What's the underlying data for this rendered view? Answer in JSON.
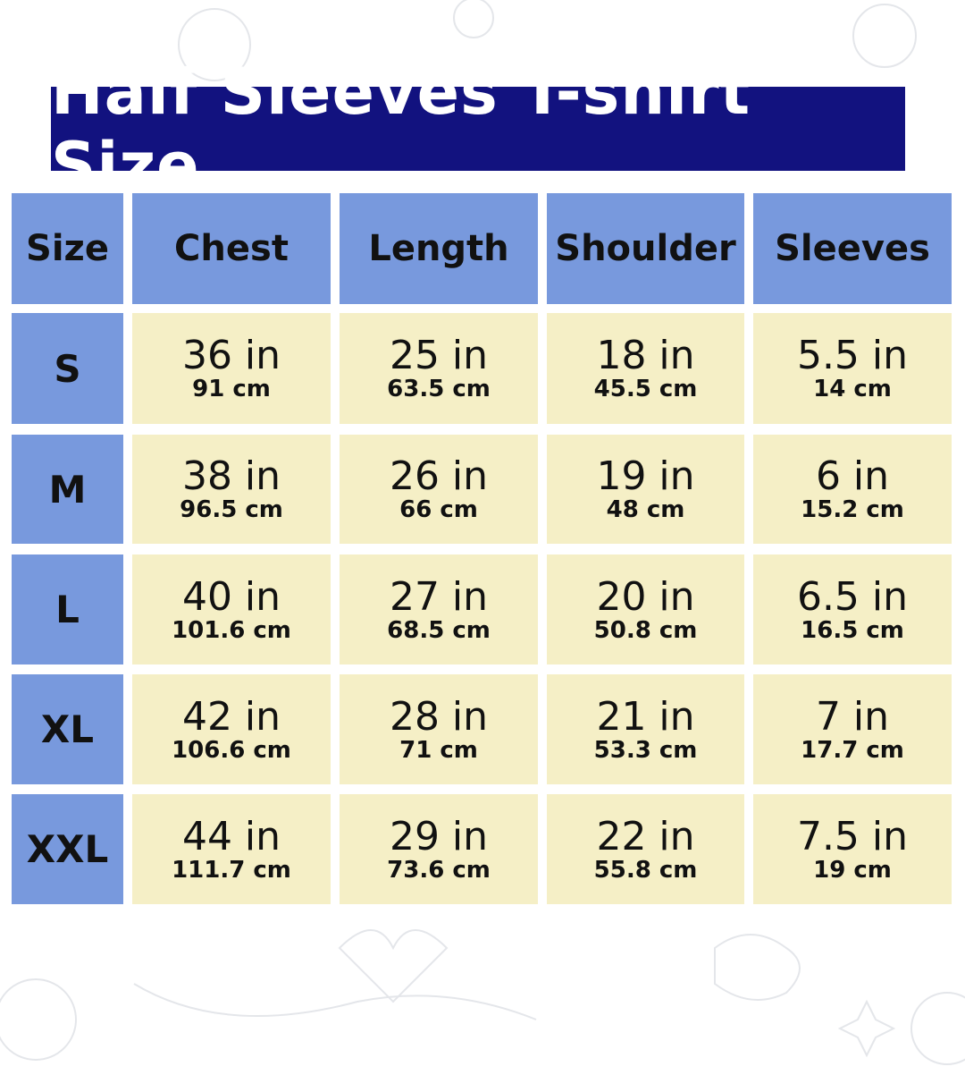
{
  "title": "Half Sleeves T-shirt Size",
  "colors": {
    "title_bg": "#12127f",
    "header_bg": "#7899dd",
    "cell_bg": "#f5efc6"
  },
  "headers": [
    "Size",
    "Chest",
    "Length",
    "Shoulder",
    "Sleeves"
  ],
  "rows": [
    {
      "size": "S",
      "values": [
        {
          "in": "36 in",
          "cm": "91 cm"
        },
        {
          "in": "25 in",
          "cm": "63.5 cm"
        },
        {
          "in": "18 in",
          "cm": "45.5 cm"
        },
        {
          "in": "5.5 in",
          "cm": "14 cm"
        }
      ]
    },
    {
      "size": "M",
      "values": [
        {
          "in": "38 in",
          "cm": "96.5 cm"
        },
        {
          "in": "26 in",
          "cm": "66 cm"
        },
        {
          "in": "19 in",
          "cm": "48 cm"
        },
        {
          "in": "6 in",
          "cm": "15.2 cm"
        }
      ]
    },
    {
      "size": "L",
      "values": [
        {
          "in": "40 in",
          "cm": "101.6 cm"
        },
        {
          "in": "27 in",
          "cm": "68.5 cm"
        },
        {
          "in": "20 in",
          "cm": "50.8 cm"
        },
        {
          "in": "6.5 in",
          "cm": "16.5 cm"
        }
      ]
    },
    {
      "size": "XL",
      "values": [
        {
          "in": "42 in",
          "cm": "106.6 cm"
        },
        {
          "in": "28 in",
          "cm": "71 cm"
        },
        {
          "in": "21 in",
          "cm": "53.3 cm"
        },
        {
          "in": "7 in",
          "cm": "17.7 cm"
        }
      ]
    },
    {
      "size": "XXL",
      "values": [
        {
          "in": "44 in",
          "cm": "111.7 cm"
        },
        {
          "in": "29 in",
          "cm": "73.6 cm"
        },
        {
          "in": "22 in",
          "cm": "55.8 cm"
        },
        {
          "in": "7.5 in",
          "cm": "19 cm"
        }
      ]
    }
  ]
}
